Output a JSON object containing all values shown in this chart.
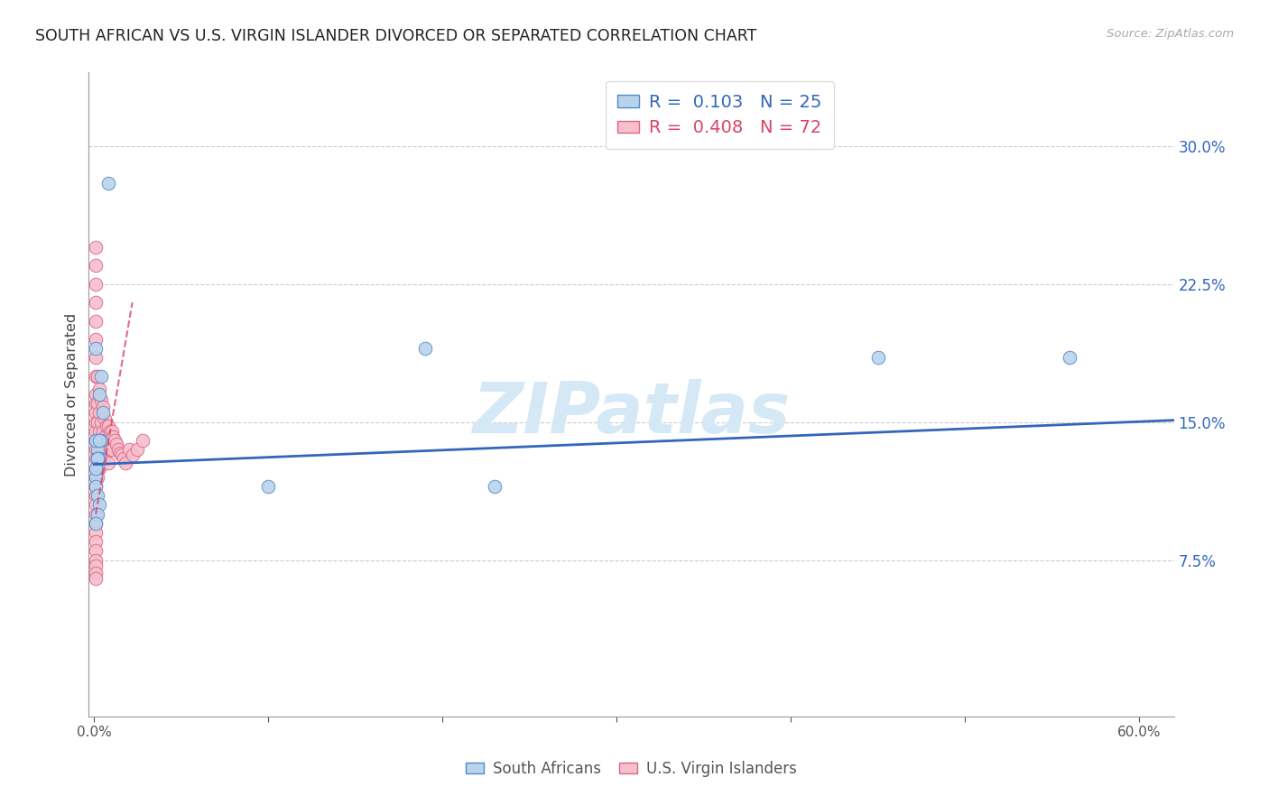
{
  "title": "SOUTH AFRICAN VS U.S. VIRGIN ISLANDER DIVORCED OR SEPARATED CORRELATION CHART",
  "source": "Source: ZipAtlas.com",
  "ylabel": "Divorced or Separated",
  "xlim": [
    -0.003,
    0.62
  ],
  "ylim": [
    -0.01,
    0.34
  ],
  "ytick_positions": [
    0.075,
    0.15,
    0.225,
    0.3
  ],
  "ytick_labels": [
    "7.5%",
    "15.0%",
    "22.5%",
    "30.0%"
  ],
  "xtick_positions": [
    0.0,
    0.1,
    0.2,
    0.3,
    0.4,
    0.5,
    0.6
  ],
  "xtick_labels_shown": {
    "0": "0.0%",
    "6": "60.0%"
  },
  "blue_R": "0.103",
  "blue_N": "25",
  "pink_R": "0.408",
  "pink_N": "72",
  "blue_dot_color": "#b8d4ec",
  "blue_edge_color": "#5588cc",
  "blue_line_color": "#3366bb",
  "pink_dot_color": "#f5bfcc",
  "pink_edge_color": "#dd6688",
  "pink_line_color": "#dd4466",
  "watermark_color": "#d5e8f5",
  "blue_x": [
    0.008,
    0.001,
    0.004,
    0.003,
    0.005,
    0.004,
    0.002,
    0.003,
    0.002,
    0.001,
    0.001,
    0.002,
    0.003,
    0.002,
    0.001,
    0.001,
    0.002,
    0.003,
    0.002,
    0.001,
    0.19,
    0.23,
    0.1,
    0.56,
    0.45
  ],
  "blue_y": [
    0.28,
    0.19,
    0.175,
    0.165,
    0.155,
    0.14,
    0.135,
    0.13,
    0.125,
    0.12,
    0.14,
    0.13,
    0.14,
    0.13,
    0.125,
    0.115,
    0.11,
    0.105,
    0.1,
    0.095,
    0.19,
    0.115,
    0.115,
    0.185,
    0.185
  ],
  "pink_x": [
    0.001,
    0.001,
    0.001,
    0.001,
    0.001,
    0.001,
    0.001,
    0.001,
    0.001,
    0.001,
    0.001,
    0.001,
    0.001,
    0.001,
    0.001,
    0.001,
    0.001,
    0.001,
    0.001,
    0.001,
    0.001,
    0.001,
    0.001,
    0.001,
    0.001,
    0.001,
    0.001,
    0.001,
    0.001,
    0.001,
    0.002,
    0.002,
    0.002,
    0.002,
    0.002,
    0.002,
    0.003,
    0.003,
    0.003,
    0.003,
    0.003,
    0.004,
    0.004,
    0.004,
    0.004,
    0.005,
    0.005,
    0.005,
    0.006,
    0.006,
    0.006,
    0.007,
    0.007,
    0.008,
    0.008,
    0.008,
    0.009,
    0.009,
    0.01,
    0.01,
    0.011,
    0.012,
    0.013,
    0.014,
    0.015,
    0.016,
    0.017,
    0.018,
    0.02,
    0.022,
    0.025,
    0.028
  ],
  "pink_y": [
    0.245,
    0.235,
    0.225,
    0.215,
    0.205,
    0.195,
    0.185,
    0.175,
    0.165,
    0.16,
    0.155,
    0.15,
    0.145,
    0.14,
    0.135,
    0.13,
    0.125,
    0.12,
    0.115,
    0.11,
    0.105,
    0.1,
    0.095,
    0.09,
    0.085,
    0.08,
    0.075,
    0.072,
    0.068,
    0.065,
    0.175,
    0.16,
    0.15,
    0.14,
    0.13,
    0.12,
    0.168,
    0.155,
    0.145,
    0.135,
    0.125,
    0.162,
    0.15,
    0.14,
    0.13,
    0.158,
    0.145,
    0.135,
    0.152,
    0.142,
    0.132,
    0.148,
    0.138,
    0.148,
    0.138,
    0.128,
    0.145,
    0.135,
    0.145,
    0.135,
    0.142,
    0.14,
    0.138,
    0.135,
    0.133,
    0.132,
    0.13,
    0.128,
    0.135,
    0.132,
    0.135,
    0.14
  ],
  "blue_line_x0": 0.0,
  "blue_line_x1": 0.62,
  "blue_line_y0": 0.127,
  "blue_line_y1": 0.151,
  "pink_line_x0": 0.001,
  "pink_line_x1": 0.022,
  "pink_line_y0": 0.1,
  "pink_line_y1": 0.215
}
